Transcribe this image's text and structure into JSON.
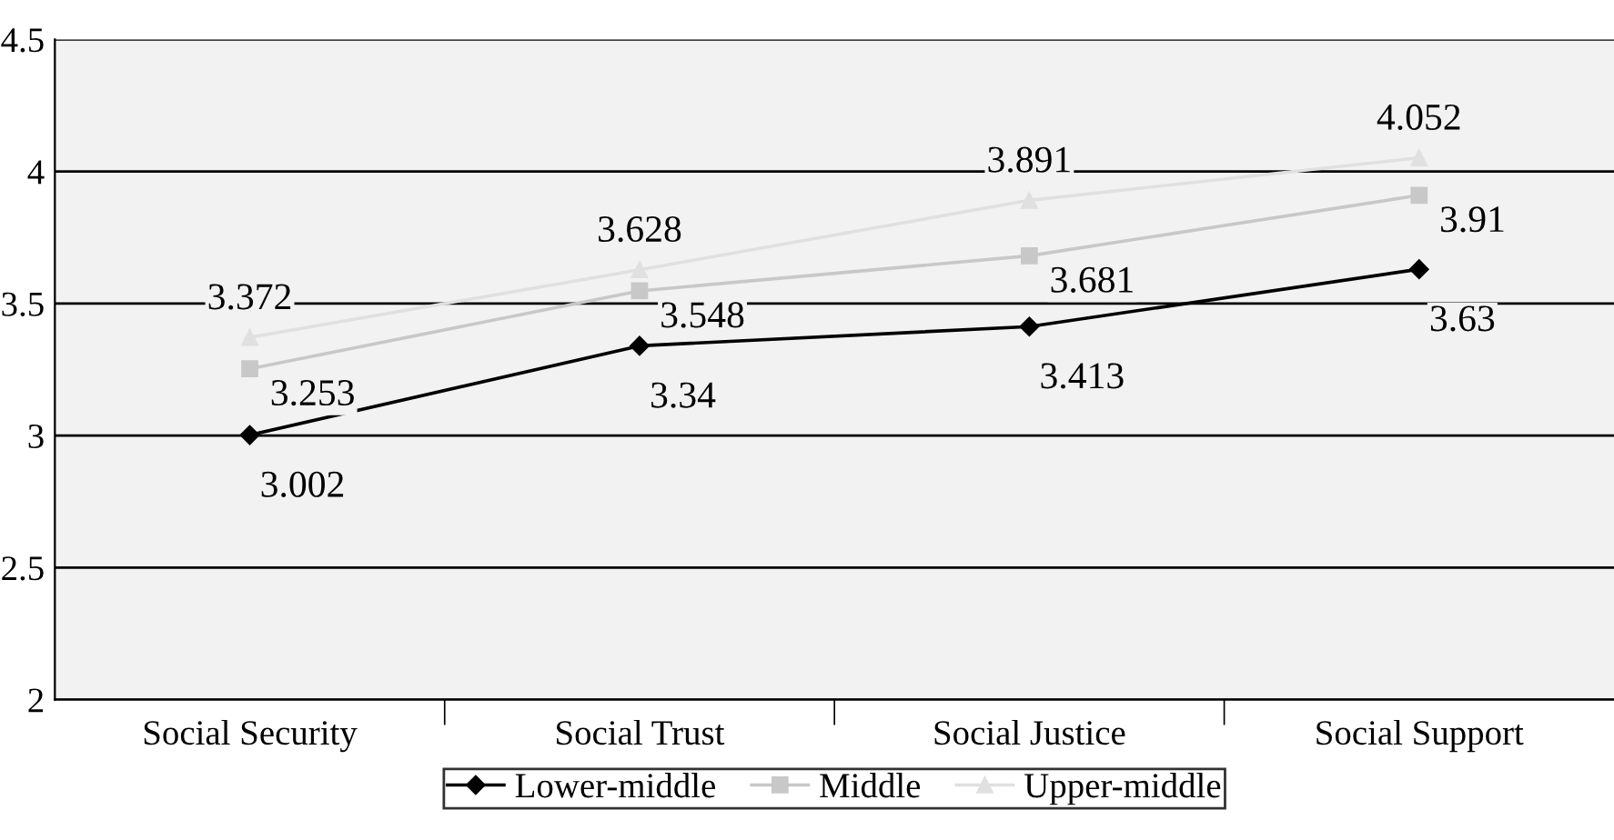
{
  "chart_data": {
    "type": "line",
    "categories": [
      "Social Security",
      "Social Trust",
      "Social Justice",
      "Social Support"
    ],
    "series": [
      {
        "name": "Lower-middle",
        "color": "#000000",
        "marker": "diamond",
        "values": [
          3.002,
          3.34,
          3.413,
          3.63
        ]
      },
      {
        "name": "Middle",
        "color": "#c8c8c8",
        "marker": "square",
        "values": [
          3.253,
          3.548,
          3.681,
          3.91
        ]
      },
      {
        "name": "Upper-middle",
        "color": "#e0e0e0",
        "marker": "triangle",
        "values": [
          3.372,
          3.628,
          3.891,
          4.052
        ]
      }
    ],
    "ylim": [
      2,
      4.5
    ],
    "yticks": [
      2,
      2.5,
      3,
      3.5,
      4,
      4.5
    ],
    "grid": "y",
    "legend": "bottom",
    "data_labels": true
  }
}
